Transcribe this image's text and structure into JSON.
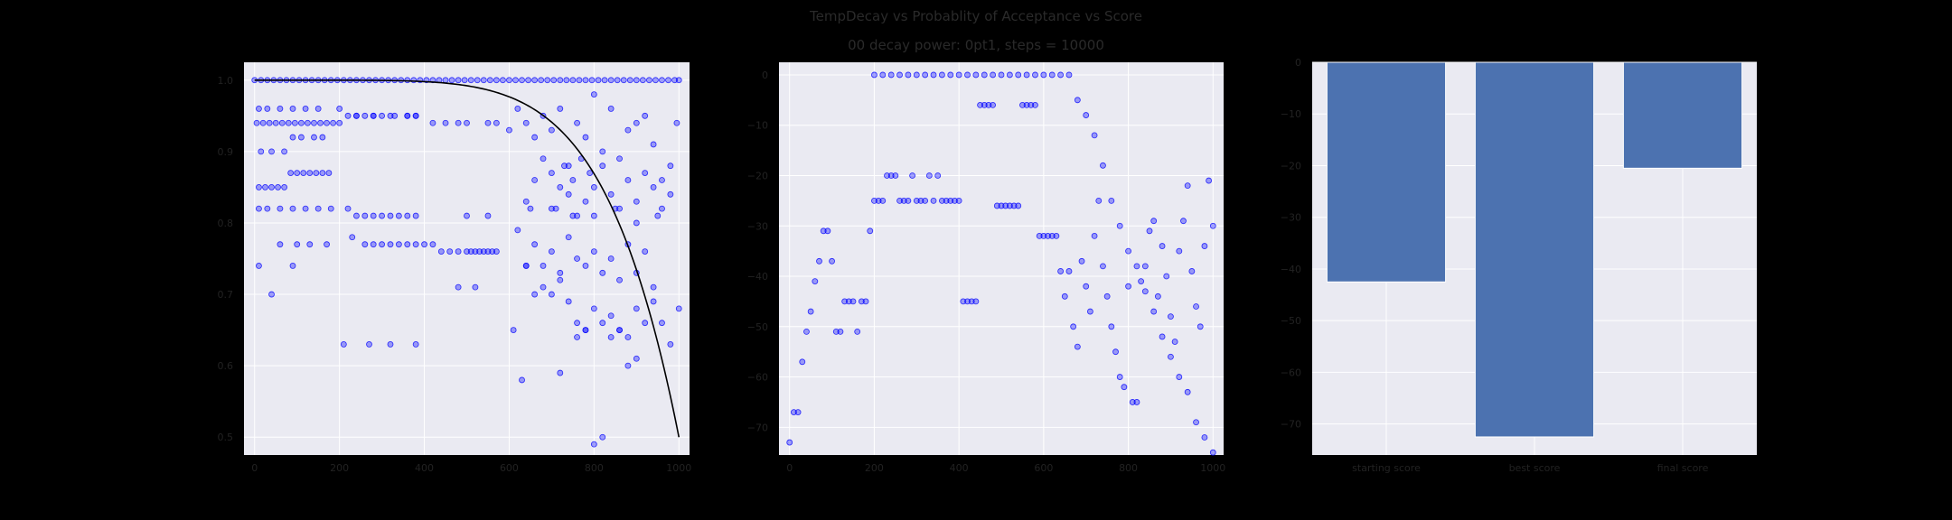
{
  "figure": {
    "title_line1": "TempDecay vs Probablity of Acceptance vs Score",
    "title_line2": "00 decay power: 0pt1, steps = 10000"
  },
  "colors": {
    "background": "#000000",
    "axes_face": "#eaeaf2",
    "grid": "#ffffff",
    "scatter": "#0000ff",
    "curve": "#000000",
    "bar": "#4c72b0"
  },
  "chart_data": [
    {
      "type": "scatter",
      "title": "",
      "xlabel": "",
      "ylabel": "",
      "xlim": [
        -25,
        1025
      ],
      "ylim": [
        0.475,
        1.025
      ],
      "xticks": [
        0,
        200,
        400,
        600,
        800,
        1000
      ],
      "yticks": [
        0.5,
        0.6,
        0.7,
        0.8,
        0.9,
        1.0
      ],
      "ytick_labels": [
        "0.5",
        "0.6",
        "0.7",
        "0.8",
        "0.9",
        "1.0"
      ],
      "grid": true,
      "marker_alpha": 0.35,
      "curve": {
        "name": "",
        "formula": "y = 1 - 0.5*(x/1000)^10 approx",
        "decay_power": 0.1
      },
      "series": [
        {
          "name": "",
          "x": [
            0,
            15,
            30,
            45,
            60,
            75,
            90,
            105,
            120,
            135,
            150,
            165,
            180,
            195,
            210,
            225,
            240,
            255,
            270,
            285,
            300,
            315,
            330,
            345,
            360,
            375,
            390,
            405,
            420,
            435,
            450,
            465,
            480,
            495,
            510,
            525,
            540,
            555,
            570,
            585,
            600,
            615,
            630,
            645,
            660,
            675,
            690,
            705,
            720,
            735,
            750,
            765,
            780,
            795,
            810,
            825,
            840,
            855,
            870,
            885,
            900,
            915,
            930,
            945,
            960,
            975,
            990,
            1000
          ],
          "y": [
            1,
            1,
            1,
            1,
            1,
            1,
            1,
            1,
            1,
            1,
            1,
            1,
            1,
            1,
            1,
            1,
            1,
            1,
            1,
            1,
            1,
            1,
            1,
            1,
            1,
            1,
            1,
            1,
            1,
            1,
            1,
            1,
            1,
            1,
            1,
            1,
            1,
            1,
            1,
            1,
            1,
            1,
            1,
            1,
            1,
            1,
            1,
            1,
            1,
            1,
            1,
            1,
            1,
            1,
            1,
            1,
            1,
            1,
            1,
            1,
            1,
            1,
            1,
            1,
            1,
            1,
            1,
            1
          ]
        },
        {
          "name": "",
          "x": [
            5,
            20,
            35,
            50,
            65,
            80,
            95,
            110,
            125,
            140,
            155,
            170,
            185,
            200,
            220,
            240,
            260,
            280,
            300,
            330,
            360,
            380,
            420,
            450,
            480,
            500,
            550,
            570,
            600,
            620,
            640,
            660,
            680,
            700,
            720,
            740,
            760,
            780,
            800,
            820,
            840,
            860,
            880,
            900,
            920,
            940,
            960,
            980,
            995
          ],
          "y": [
            0.94,
            0.94,
            0.94,
            0.94,
            0.94,
            0.94,
            0.94,
            0.94,
            0.94,
            0.94,
            0.94,
            0.94,
            0.94,
            0.94,
            0.95,
            0.95,
            0.95,
            0.95,
            0.95,
            0.95,
            0.95,
            0.95,
            0.94,
            0.94,
            0.94,
            0.94,
            0.94,
            0.94,
            0.93,
            0.96,
            0.94,
            0.92,
            0.95,
            0.93,
            0.96,
            0.88,
            0.94,
            0.92,
            0.98,
            0.9,
            0.96,
            0.89,
            0.93,
            0.94,
            0.95,
            0.91,
            0.86,
            0.88,
            0.94
          ]
        },
        {
          "name": "",
          "x": [
            10,
            30,
            60,
            90,
            120,
            150,
            200,
            240,
            280,
            320,
            360,
            380
          ],
          "y": [
            0.96,
            0.96,
            0.96,
            0.96,
            0.96,
            0.96,
            0.96,
            0.95,
            0.95,
            0.95,
            0.95,
            0.95
          ]
        },
        {
          "name": "",
          "x": [
            15,
            40,
            70,
            90,
            110,
            140,
            160
          ],
          "y": [
            0.9,
            0.9,
            0.9,
            0.92,
            0.92,
            0.92,
            0.92
          ]
        },
        {
          "name": "",
          "x": [
            10,
            25,
            40,
            55,
            70,
            85,
            100,
            115,
            130,
            145,
            160,
            175
          ],
          "y": [
            0.85,
            0.85,
            0.85,
            0.85,
            0.85,
            0.87,
            0.87,
            0.87,
            0.87,
            0.87,
            0.87,
            0.87
          ]
        },
        {
          "name": "",
          "x": [
            640,
            660,
            680,
            700,
            710,
            720,
            730,
            740,
            750,
            760,
            770,
            780,
            790,
            800,
            820,
            840,
            860,
            880,
            900,
            920,
            940,
            960,
            980
          ],
          "y": [
            0.83,
            0.86,
            0.89,
            0.87,
            0.82,
            0.85,
            0.88,
            0.84,
            0.86,
            0.81,
            0.89,
            0.83,
            0.87,
            0.85,
            0.88,
            0.84,
            0.82,
            0.86,
            0.83,
            0.87,
            0.85,
            0.82,
            0.84
          ]
        },
        {
          "name": "",
          "x": [
            10,
            30,
            60,
            90,
            120,
            150,
            180,
            220,
            240,
            260,
            280,
            300,
            320,
            340,
            360,
            380,
            500,
            550,
            650,
            700,
            750,
            800,
            850,
            900,
            950
          ],
          "y": [
            0.82,
            0.82,
            0.82,
            0.82,
            0.82,
            0.82,
            0.82,
            0.82,
            0.81,
            0.81,
            0.81,
            0.81,
            0.81,
            0.81,
            0.81,
            0.81,
            0.81,
            0.81,
            0.82,
            0.82,
            0.81,
            0.81,
            0.82,
            0.8,
            0.81
          ]
        },
        {
          "name": "",
          "x": [
            60,
            100,
            130,
            170,
            230,
            260,
            280,
            300,
            320,
            340,
            360,
            380,
            400,
            420,
            440,
            460,
            480,
            500,
            510,
            520,
            530,
            540,
            550,
            560,
            570,
            620,
            640,
            660,
            680,
            700,
            720,
            740,
            760,
            780,
            800,
            820,
            840,
            860,
            880,
            900,
            920,
            940
          ],
          "y": [
            0.77,
            0.77,
            0.77,
            0.77,
            0.78,
            0.77,
            0.77,
            0.77,
            0.77,
            0.77,
            0.77,
            0.77,
            0.77,
            0.77,
            0.76,
            0.76,
            0.76,
            0.76,
            0.76,
            0.76,
            0.76,
            0.76,
            0.76,
            0.76,
            0.76,
            0.79,
            0.74,
            0.77,
            0.74,
            0.76,
            0.73,
            0.78,
            0.75,
            0.74,
            0.76,
            0.73,
            0.75,
            0.72,
            0.77,
            0.73,
            0.76,
            0.71
          ]
        },
        {
          "name": "",
          "x": [
            10,
            40,
            90,
            480,
            520,
            640,
            660,
            680,
            700,
            720,
            740,
            760,
            780,
            800,
            820,
            840,
            860,
            880,
            900,
            920,
            940,
            960,
            980,
            1000
          ],
          "y": [
            0.74,
            0.7,
            0.74,
            0.71,
            0.71,
            0.74,
            0.7,
            0.71,
            0.7,
            0.72,
            0.69,
            0.66,
            0.65,
            0.68,
            0.66,
            0.67,
            0.65,
            0.64,
            0.68,
            0.66,
            0.69,
            0.66,
            0.63,
            0.68
          ]
        },
        {
          "name": "",
          "x": [
            210,
            270,
            320,
            380,
            610,
            630,
            720,
            760,
            780,
            800,
            820,
            840,
            860,
            880,
            900
          ],
          "y": [
            0.63,
            0.63,
            0.63,
            0.63,
            0.65,
            0.58,
            0.59,
            0.64,
            0.65,
            0.49,
            0.5,
            0.64,
            0.65,
            0.6,
            0.61
          ]
        }
      ]
    },
    {
      "type": "scatter",
      "title": "",
      "xlabel": "",
      "ylabel": "",
      "xlim": [
        -25,
        1025
      ],
      "ylim": [
        -75.5,
        2.5
      ],
      "xticks": [
        0,
        200,
        400,
        600,
        800,
        1000
      ],
      "yticks": [
        0,
        -10,
        -20,
        -30,
        -40,
        -50,
        -60,
        -70
      ],
      "ytick_labels": [
        "0",
        "−10",
        "−20",
        "−30",
        "−40",
        "−50",
        "−60",
        "−70"
      ],
      "grid": true,
      "marker_alpha": 0.35,
      "series": [
        {
          "name": "",
          "x": [
            0,
            10,
            20,
            30,
            40,
            50,
            60,
            70,
            80,
            90,
            100,
            110,
            120,
            130,
            140,
            150,
            160,
            170,
            180,
            190,
            200,
            210,
            220,
            230,
            240,
            250,
            260,
            270,
            280,
            290,
            300,
            310,
            320,
            330,
            340,
            350,
            360,
            370,
            380,
            390,
            400,
            410,
            420,
            430,
            440,
            450,
            460,
            470,
            480,
            490,
            500,
            510,
            520,
            530,
            540,
            550,
            560,
            570,
            580,
            590,
            600,
            610,
            620,
            630,
            640,
            650,
            660,
            670,
            680,
            690,
            700,
            710,
            720,
            730,
            740,
            750,
            760,
            770,
            780,
            790,
            800,
            810,
            820,
            830,
            840,
            850,
            860,
            870,
            880,
            890,
            900,
            910,
            920,
            930,
            940,
            950,
            960,
            970,
            980,
            990,
            1000
          ],
          "y": [
            -73,
            -67,
            -67,
            -57,
            -51,
            -47,
            -41,
            -37,
            -31,
            -31,
            -37,
            -51,
            -51,
            -45,
            -45,
            -45,
            -51,
            -45,
            -45,
            -31,
            -25,
            -25,
            -25,
            -20,
            -20,
            -20,
            -25,
            -25,
            -25,
            -20,
            -25,
            -25,
            -25,
            -20,
            -25,
            -20,
            -25,
            -25,
            -25,
            -25,
            -25,
            -45,
            -45,
            -45,
            -45,
            -6,
            -6,
            -6,
            -6,
            -26,
            -26,
            -26,
            -26,
            -26,
            -26,
            -6,
            -6,
            -6,
            -6,
            -32,
            -32,
            -32,
            -32,
            -32,
            -39,
            -44,
            -39,
            -50,
            -54,
            -37,
            -42,
            -47,
            -32,
            -25,
            -38,
            -44,
            -50,
            -55,
            -60,
            -62,
            -42,
            -65,
            -65,
            -41,
            -38,
            -31,
            -29,
            -44,
            -34,
            -40,
            -48,
            -53,
            -35,
            -29,
            -22,
            -39,
            -46,
            -50,
            -34,
            -21,
            -30
          ]
        },
        {
          "name": "",
          "x": [
            200,
            220,
            240,
            260,
            280,
            300,
            320,
            340,
            360,
            380,
            400,
            420,
            440,
            460,
            480,
            500,
            520,
            540,
            560,
            580,
            600,
            620,
            640,
            660,
            680,
            700,
            720,
            740,
            760,
            780,
            800,
            820,
            840,
            860,
            880,
            900,
            920,
            940,
            960,
            980,
            1000
          ],
          "y": [
            0,
            0,
            0,
            0,
            0,
            0,
            0,
            0,
            0,
            0,
            0,
            0,
            0,
            0,
            0,
            0,
            0,
            0,
            0,
            0,
            0,
            0,
            0,
            0,
            -5,
            -8,
            -12,
            -18,
            -25,
            -30,
            -35,
            -38,
            -43,
            -47,
            -52,
            -56,
            -60,
            -63,
            -69,
            -72,
            -75
          ]
        }
      ]
    },
    {
      "type": "bar",
      "title": "",
      "xlabel": "",
      "ylabel": "",
      "categories": [
        "starting score",
        "best score",
        "final score"
      ],
      "values": [
        -42.5,
        -72.5,
        -20.5
      ],
      "ylim": [
        -76,
        0
      ],
      "yticks": [
        0,
        -10,
        -20,
        -30,
        -40,
        -50,
        -60,
        -70
      ],
      "ytick_labels": [
        "0",
        "−10",
        "−20",
        "−30",
        "−40",
        "−50",
        "−60",
        "−70"
      ],
      "grid": true,
      "legend": "none"
    }
  ]
}
